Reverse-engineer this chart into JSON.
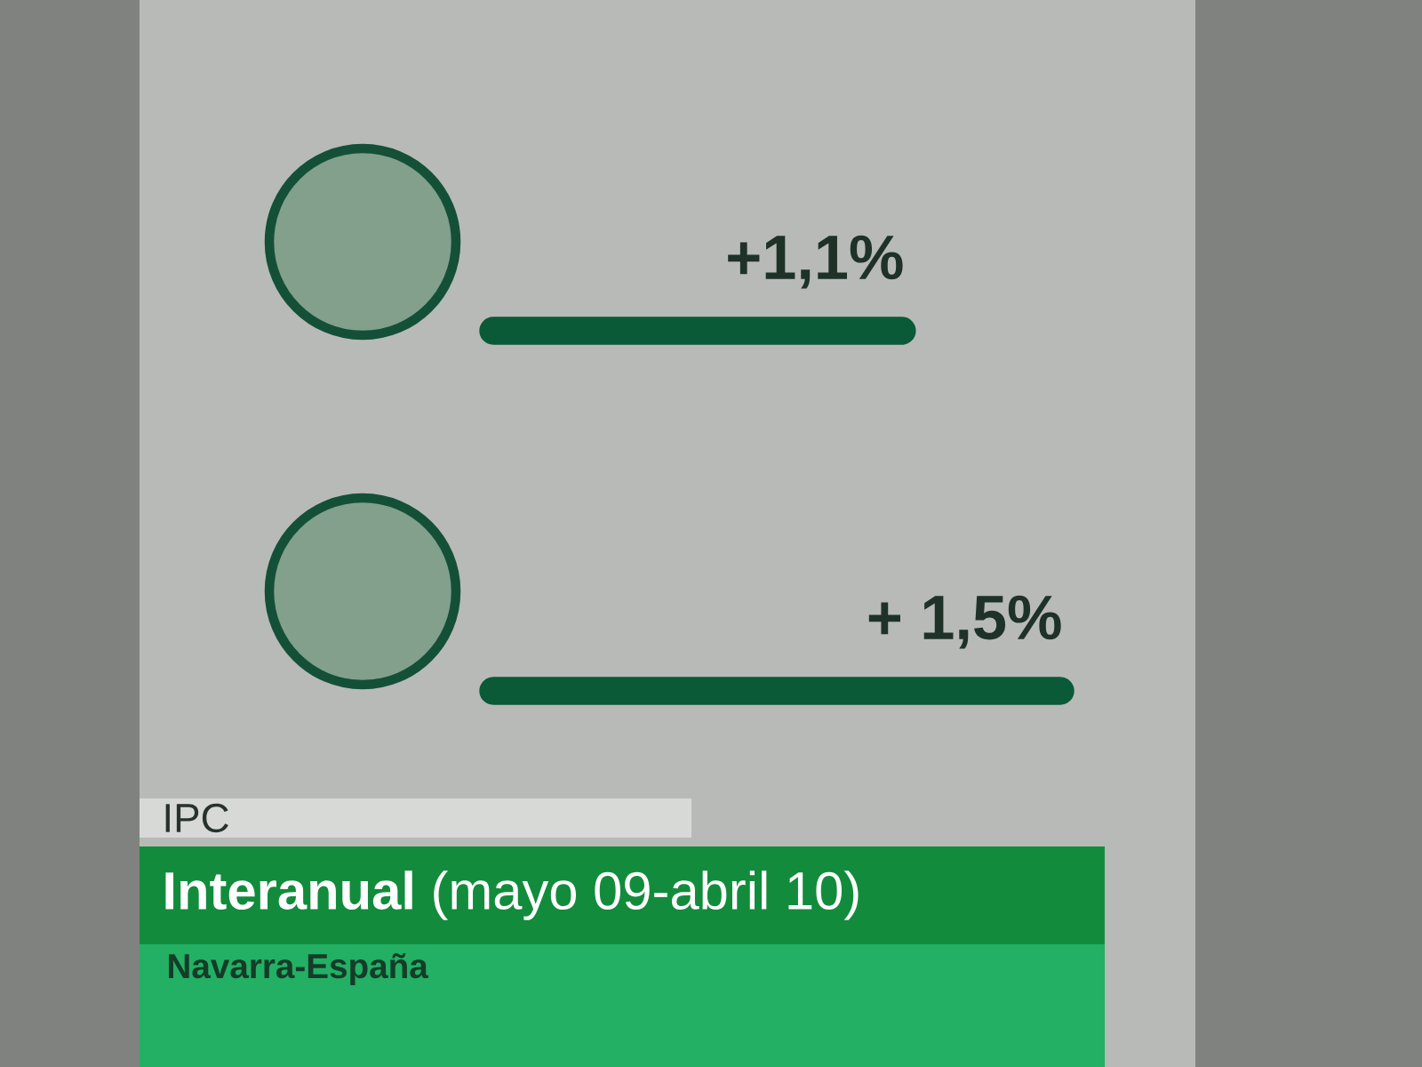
{
  "chart_data": {
    "type": "bar",
    "orientation": "horizontal",
    "title": "IPC",
    "subtitle": "**Interanual** (mayo 09-abril 10)",
    "annotations": [
      "Navarra-España"
    ],
    "categories": [
      null,
      null
    ],
    "values": [
      1.1,
      1.5
    ],
    "value_labels": [
      "+1,1%",
      "+ 1,5%"
    ],
    "color": "#0b5a37"
  }
}
